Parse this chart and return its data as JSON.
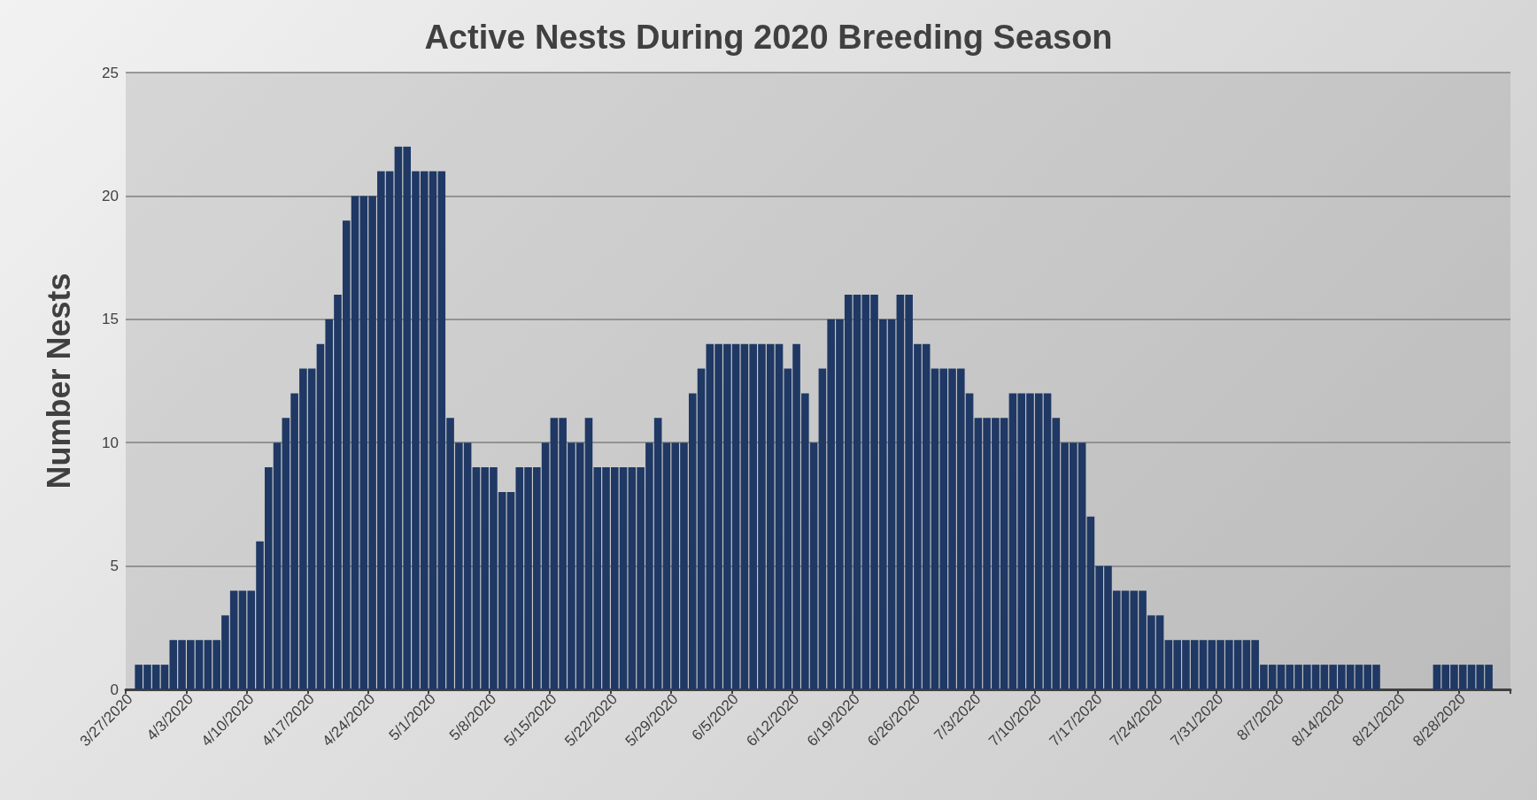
{
  "chart_data": {
    "type": "bar",
    "title": "Active Nests During 2020 Breeding Season",
    "ylabel": "Number Nests",
    "categories": [
      "3/27/2020",
      null,
      null,
      null,
      null,
      null,
      null,
      "4/3/2020",
      null,
      null,
      null,
      null,
      null,
      null,
      "4/10/2020",
      null,
      null,
      null,
      null,
      null,
      null,
      "4/17/2020",
      null,
      null,
      null,
      null,
      null,
      null,
      "4/24/2020",
      null,
      null,
      null,
      null,
      null,
      null,
      "5/1/2020",
      null,
      null,
      null,
      null,
      null,
      null,
      "5/8/2020",
      null,
      null,
      null,
      null,
      null,
      null,
      "5/15/2020",
      null,
      null,
      null,
      null,
      null,
      null,
      "5/22/2020",
      null,
      null,
      null,
      null,
      null,
      null,
      "5/29/2020",
      null,
      null,
      null,
      null,
      null,
      null,
      "6/5/2020",
      null,
      null,
      null,
      null,
      null,
      null,
      "6/12/2020",
      null,
      null,
      null,
      null,
      null,
      null,
      "6/19/2020",
      null,
      null,
      null,
      null,
      null,
      null,
      "6/26/2020",
      null,
      null,
      null,
      null,
      null,
      null,
      "7/3/2020",
      null,
      null,
      null,
      null,
      null,
      null,
      "7/10/2020",
      null,
      null,
      null,
      null,
      null,
      null,
      "7/17/2020",
      null,
      null,
      null,
      null,
      null,
      null,
      "7/24/2020",
      null,
      null,
      null,
      null,
      null,
      null,
      "7/31/2020",
      null,
      null,
      null,
      null,
      null,
      null,
      "8/7/2020",
      null,
      null,
      null,
      null,
      null,
      null,
      "8/14/2020",
      null,
      null,
      null,
      null,
      null,
      null,
      "8/21/2020",
      null,
      null,
      null,
      null,
      null,
      null,
      "8/28/2020",
      null,
      null,
      null,
      null,
      null
    ],
    "values": [
      0,
      1,
      1,
      1,
      1,
      2,
      2,
      2,
      2,
      2,
      2,
      3,
      4,
      4,
      4,
      6,
      9,
      10,
      11,
      12,
      13,
      13,
      14,
      15,
      16,
      19,
      20,
      20,
      20,
      21,
      21,
      22,
      22,
      21,
      21,
      21,
      21,
      11,
      10,
      10,
      9,
      9,
      9,
      8,
      8,
      9,
      9,
      9,
      10,
      11,
      11,
      10,
      10,
      11,
      9,
      9,
      9,
      9,
      9,
      9,
      10,
      11,
      10,
      10,
      10,
      12,
      13,
      14,
      14,
      14,
      14,
      14,
      14,
      14,
      14,
      14,
      13,
      14,
      12,
      10,
      13,
      15,
      15,
      16,
      16,
      16,
      16,
      15,
      15,
      16,
      16,
      14,
      14,
      13,
      13,
      13,
      13,
      12,
      11,
      11,
      11,
      11,
      12,
      12,
      12,
      12,
      12,
      11,
      10,
      10,
      10,
      7,
      5,
      5,
      4,
      4,
      4,
      4,
      3,
      3,
      2,
      2,
      2,
      2,
      2,
      2,
      2,
      2,
      2,
      2,
      2,
      1,
      1,
      1,
      1,
      1,
      1,
      1,
      1,
      1,
      1,
      1,
      1,
      1,
      1,
      0,
      0,
      0,
      0,
      0,
      0,
      1,
      1,
      1,
      1,
      1,
      1,
      1,
      0,
      0
    ],
    "color": "#1f3864",
    "ylim": [
      0,
      25
    ],
    "yticks": [
      0,
      5,
      10,
      15,
      20,
      25
    ],
    "grid": "y"
  }
}
